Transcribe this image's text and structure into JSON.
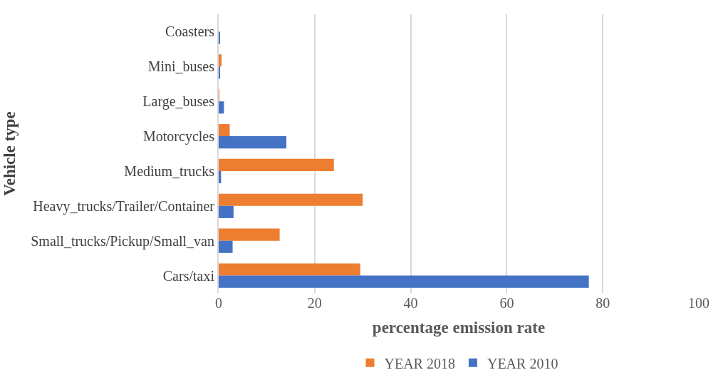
{
  "chart_data": {
    "type": "bar",
    "orientation": "horizontal",
    "xlabel": "percentage emission rate",
    "ylabel": "Vehicle type",
    "categories": [
      "Coasters",
      "Mini_buses",
      "Large_buses",
      "Motorcycles",
      "Medium_trucks",
      "Heavy_trucks/Trailer/Container",
      "Small_trucks/Pickup/Small_van",
      "Cars/taxi"
    ],
    "series": [
      {
        "name": "YEAR 2018",
        "color": "#ed7d31",
        "values": [
          0,
          0.6,
          0.1,
          2.3,
          24.0,
          30.0,
          12.7,
          29.5
        ]
      },
      {
        "name": "YEAR 2010",
        "color": "#4472c4",
        "values": [
          0.3,
          0.3,
          1.1,
          14.1,
          0.5,
          3.1,
          2.9,
          77.1
        ]
      }
    ],
    "xlim": [
      0,
      100
    ],
    "xticks": [
      0,
      20,
      40,
      60,
      80,
      100
    ],
    "grid": "x",
    "legend": "bottom"
  }
}
